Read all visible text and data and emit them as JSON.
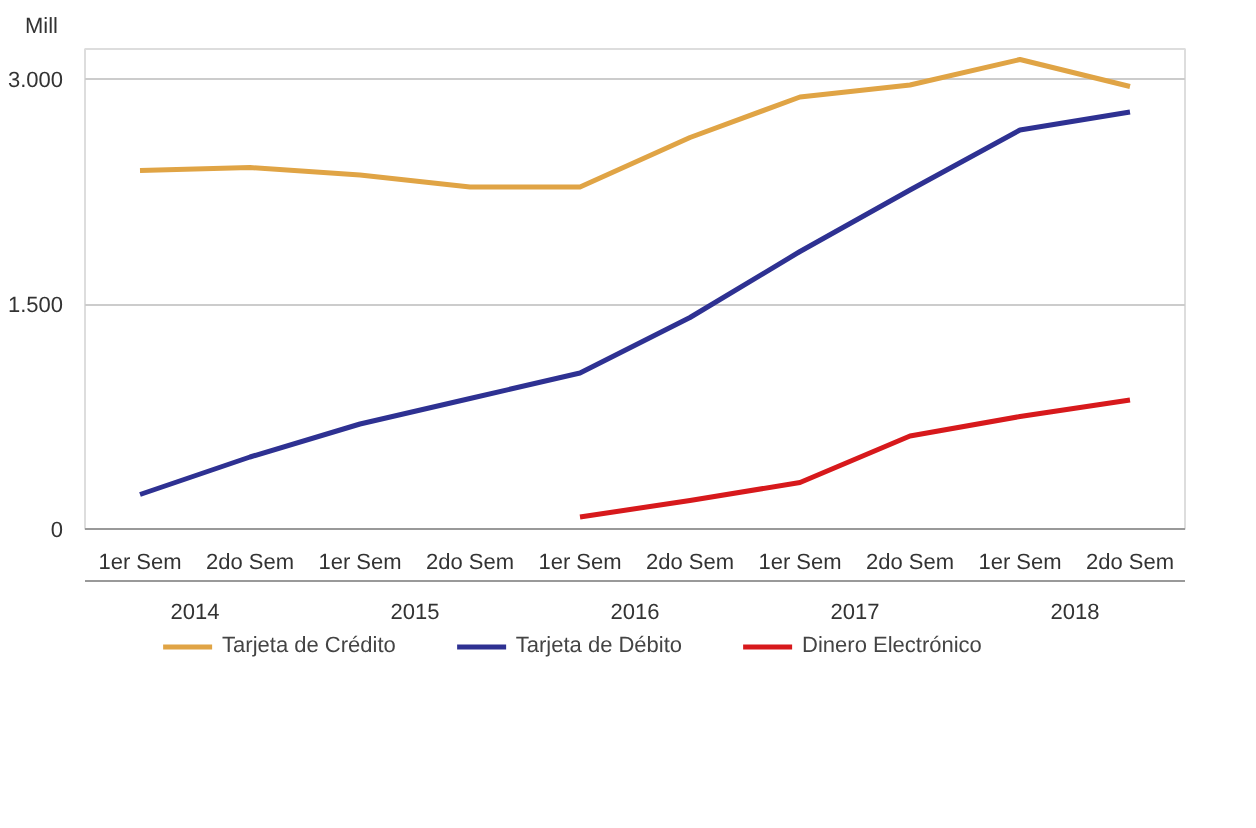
{
  "chart_data": {
    "type": "line",
    "ylabel": "Mill",
    "categories": [
      "1er Sem",
      "2do Sem",
      "1er Sem",
      "2do Sem",
      "1er Sem",
      "2do Sem",
      "1er Sem",
      "2do Sem",
      "1er Sem",
      "2do Sem"
    ],
    "annotations": [
      "2014",
      "2015",
      "2016",
      "2017",
      "2018"
    ],
    "series": [
      {
        "name": "Tarjeta de Crédito",
        "color": "#e0a445",
        "values": [
          2390,
          2410,
          2360,
          2280,
          2280,
          2610,
          2880,
          2960,
          3130,
          2950
        ]
      },
      {
        "name": "Tarjeta de Débito",
        "color": "#2e3192",
        "values": [
          230,
          480,
          700,
          870,
          1040,
          1410,
          1850,
          2260,
          2660,
          2780
        ]
      },
      {
        "name": "Dinero Electrónico",
        "color": "#d7191c",
        "values": [
          null,
          null,
          null,
          null,
          80,
          190,
          310,
          620,
          750,
          860
        ]
      }
    ],
    "ylim": [
      0,
      3200
    ],
    "yticks": [
      {
        "value": 0,
        "label": "0"
      },
      {
        "value": 1500,
        "label": "1.500"
      },
      {
        "value": 3000,
        "label": "3.000"
      }
    ],
    "grid": "y",
    "legend": "bottom",
    "marker": "none",
    "line_style": "solid"
  }
}
